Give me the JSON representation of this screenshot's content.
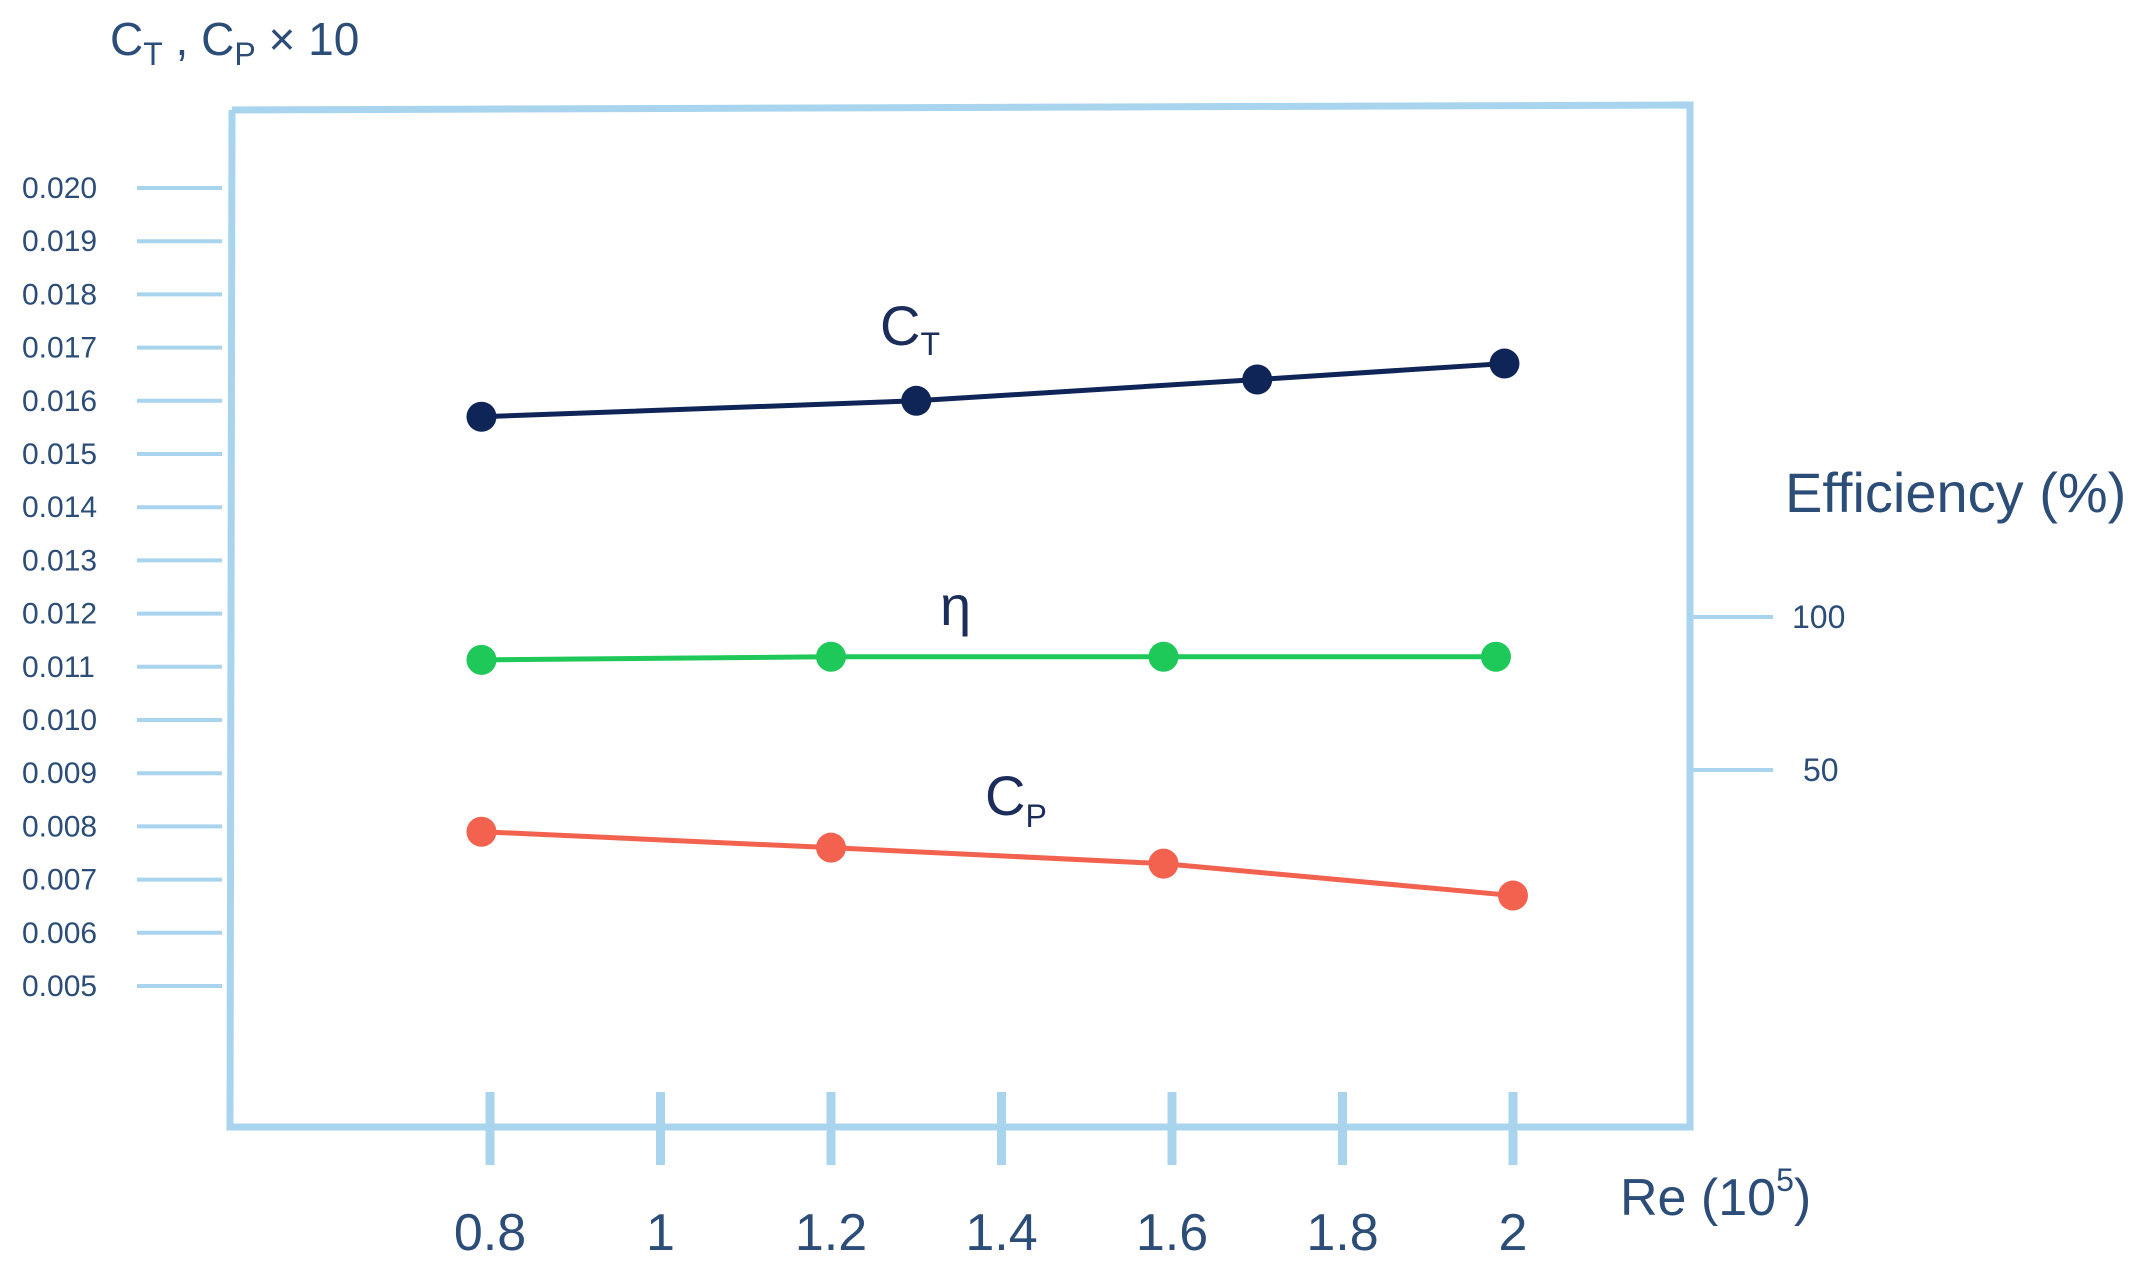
{
  "chart_data": {
    "type": "line",
    "ylabel": {
      "c1": "C",
      "s1": "T",
      "mid": " , C",
      "s2": "P",
      "tail": " × 10"
    },
    "y2label": "Efficiency (%)",
    "xlabel": {
      "text": "Re (10",
      "sup": "5",
      "close": ")"
    },
    "yticks": [
      "0.020",
      "0.019",
      "0.018",
      "0.017",
      "0.016",
      "0.015",
      "0.014",
      "0.013",
      "0.012",
      "0.011",
      "0.010",
      "0.009",
      "0.008",
      "0.007",
      "0.006",
      "0.005"
    ],
    "ylim": [
      0.005,
      0.02
    ],
    "y2ticks": [
      "100",
      "50"
    ],
    "xticks": [
      "0.8",
      "1",
      "1.2",
      "1.4",
      "1.6",
      "1.8",
      "2"
    ],
    "xlim": [
      0.8,
      2.0
    ],
    "series": [
      {
        "label": "C",
        "sub": "T",
        "color": "#0f2557",
        "axis": "left",
        "points": [
          [
            0.79,
            0.0157
          ],
          [
            1.3,
            0.016
          ],
          [
            1.7,
            0.0164
          ],
          [
            1.99,
            0.0167
          ]
        ]
      },
      {
        "label": "η",
        "sub": "",
        "color": "#1ec95a",
        "axis": "right",
        "points": [
          [
            0.79,
            86
          ],
          [
            1.2,
            87
          ],
          [
            1.59,
            87
          ],
          [
            1.98,
            87
          ]
        ]
      },
      {
        "label": "C",
        "sub": "P",
        "color": "#f2624f",
        "axis": "left",
        "points": [
          [
            0.79,
            0.0079
          ],
          [
            1.2,
            0.0076
          ],
          [
            1.59,
            0.0073
          ],
          [
            2.0,
            0.0067
          ]
        ]
      }
    ],
    "frame_color": "#a8d4ee",
    "grid": false,
    "legend": "none"
  }
}
